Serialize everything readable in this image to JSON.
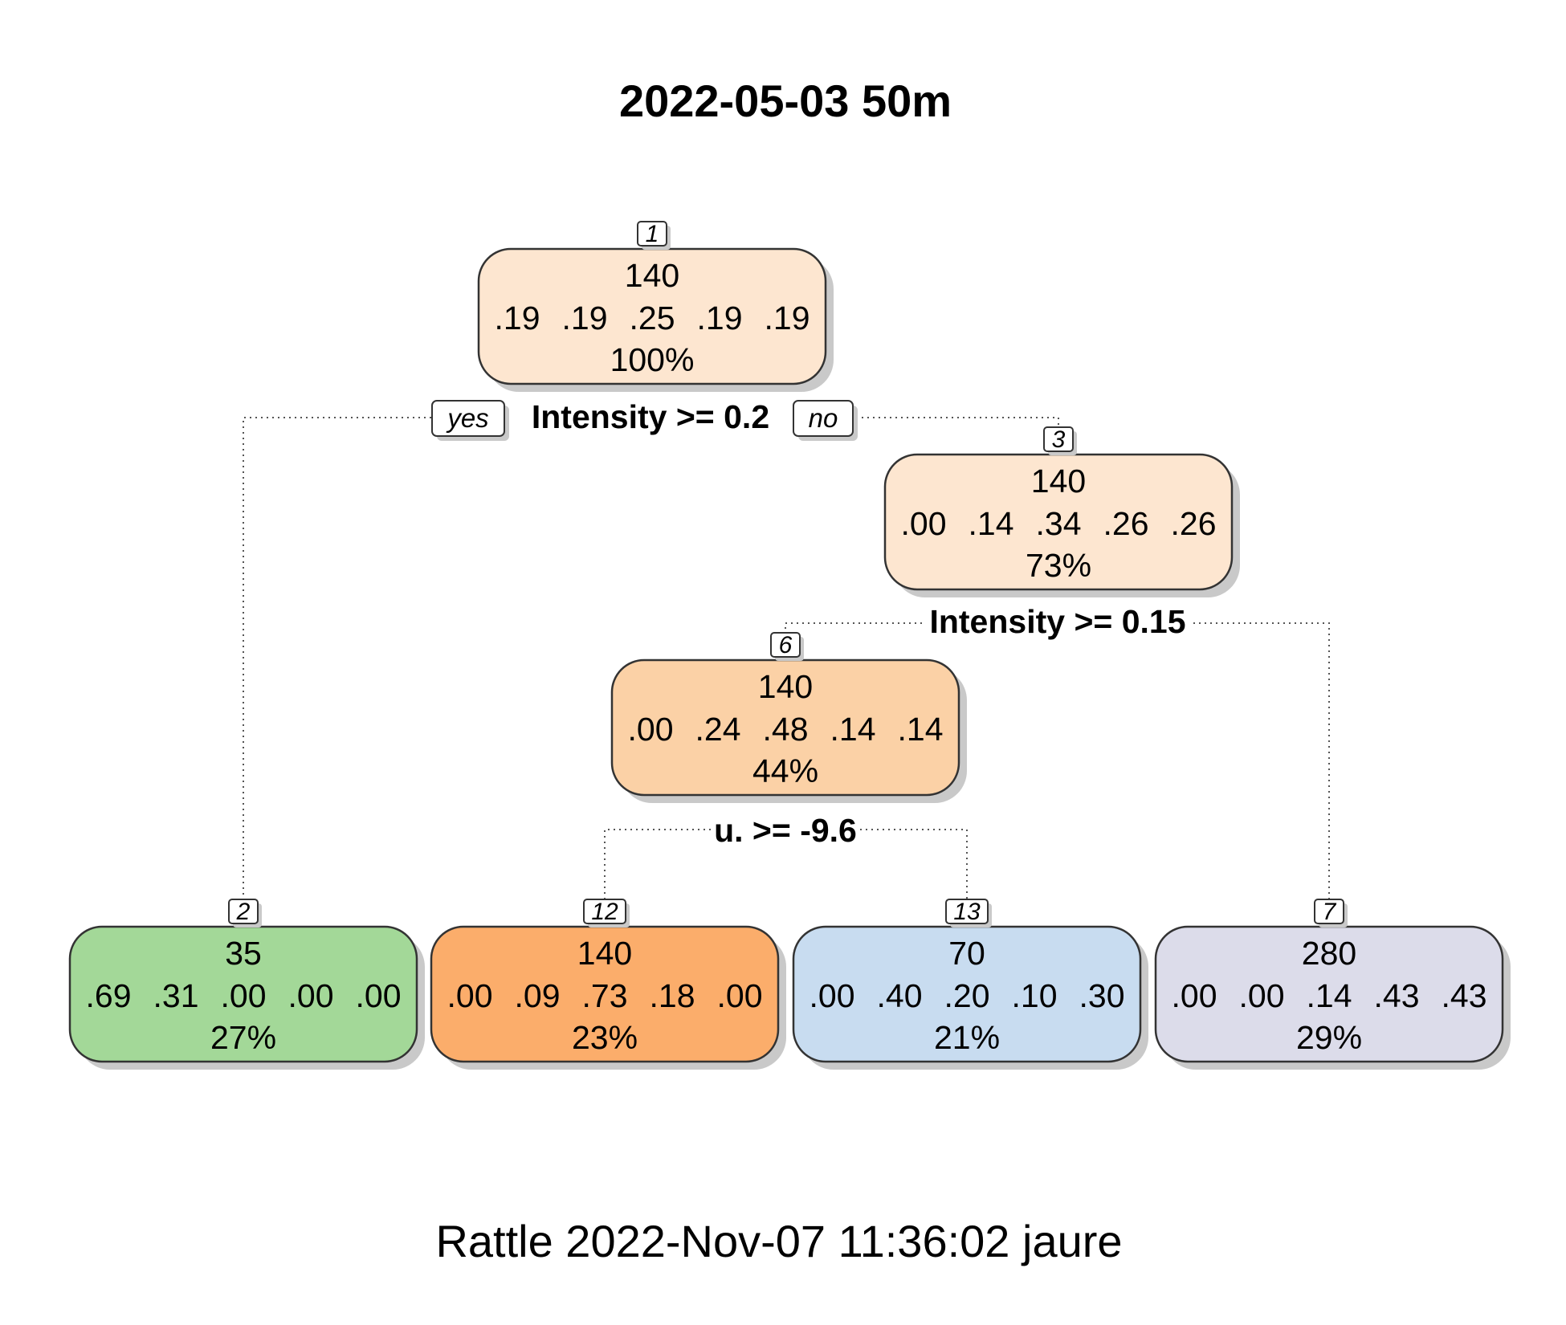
{
  "title": "2022-05-03 50m",
  "footer": "Rattle 2022-Nov-07 11:36:02 jaure",
  "branch_labels": {
    "yes": "yes",
    "no": "no"
  },
  "splits": [
    {
      "id": "split-1",
      "text": "Intensity >= 0.2"
    },
    {
      "id": "split-3",
      "text": "Intensity >= 0.15"
    },
    {
      "id": "split-6",
      "text": "u. >= -9.6"
    }
  ],
  "nodes": [
    {
      "id": "1",
      "count": "140",
      "probs": [
        ".19",
        ".19",
        ".25",
        ".19",
        ".19"
      ],
      "pct": "100%",
      "color": "#fde6d0"
    },
    {
      "id": "3",
      "count": "140",
      "probs": [
        ".00",
        ".14",
        ".34",
        ".26",
        ".26"
      ],
      "pct": "73%",
      "color": "#fde6d0"
    },
    {
      "id": "6",
      "count": "140",
      "probs": [
        ".00",
        ".24",
        ".48",
        ".14",
        ".14"
      ],
      "pct": "44%",
      "color": "#fbd1a6"
    },
    {
      "id": "2",
      "count": "35",
      "probs": [
        ".69",
        ".31",
        ".00",
        ".00",
        ".00"
      ],
      "pct": "27%",
      "color": "#a3d898"
    },
    {
      "id": "12",
      "count": "140",
      "probs": [
        ".00",
        ".09",
        ".73",
        ".18",
        ".00"
      ],
      "pct": "23%",
      "color": "#fbad6b"
    },
    {
      "id": "13",
      "count": "70",
      "probs": [
        ".00",
        ".40",
        ".20",
        ".10",
        ".30"
      ],
      "pct": "21%",
      "color": "#c8dcf0"
    },
    {
      "id": "7",
      "count": "280",
      "probs": [
        ".00",
        ".00",
        ".14",
        ".43",
        ".43"
      ],
      "pct": "29%",
      "color": "#dcdcea"
    }
  ]
}
